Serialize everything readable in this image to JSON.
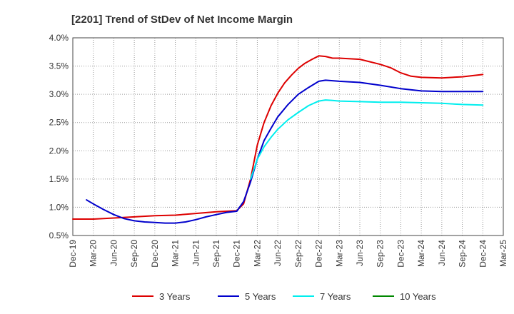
{
  "chart_data": {
    "type": "line",
    "title": "[2201]  Trend of StDev of Net Income Margin",
    "xlabel": "",
    "ylabel": "",
    "x": [
      "Dec-19",
      "Mar-20",
      "Jun-20",
      "Sep-20",
      "Dec-20",
      "Mar-21",
      "Jun-21",
      "Sep-21",
      "Dec-21",
      "Mar-22",
      "Jun-22",
      "Sep-22",
      "Dec-22",
      "Mar-23",
      "Jun-23",
      "Sep-23",
      "Dec-23",
      "Mar-24",
      "Jun-24",
      "Sep-24",
      "Dec-24",
      "Mar-25"
    ],
    "ylim": [
      0.5,
      4.0
    ],
    "y_ticks": [
      0.5,
      1.0,
      1.5,
      2.0,
      2.5,
      3.0,
      3.5,
      4.0
    ],
    "y_tick_labels": [
      "0.5%",
      "1.0%",
      "1.5%",
      "2.0%",
      "2.5%",
      "3.0%",
      "3.5%",
      "4.0%"
    ],
    "grid": true,
    "legend_position": "bottom",
    "series": [
      {
        "name": "3 Years",
        "color": "#dd0000",
        "points": [
          [
            0,
            0.79
          ],
          [
            1,
            0.79
          ],
          [
            2,
            0.81
          ],
          [
            3,
            0.83
          ],
          [
            4,
            0.85
          ],
          [
            5,
            0.86
          ],
          [
            6,
            0.89
          ],
          [
            7,
            0.92
          ],
          [
            8,
            0.94
          ],
          [
            8.33,
            1.06
          ],
          [
            8.67,
            1.5
          ],
          [
            9,
            2.1
          ],
          [
            9.33,
            2.5
          ],
          [
            9.67,
            2.8
          ],
          [
            10,
            3.02
          ],
          [
            10.33,
            3.2
          ],
          [
            10.67,
            3.34
          ],
          [
            11,
            3.46
          ],
          [
            11.33,
            3.55
          ],
          [
            11.67,
            3.62
          ],
          [
            12,
            3.68
          ],
          [
            12.33,
            3.67
          ],
          [
            12.67,
            3.64
          ],
          [
            13,
            3.64
          ],
          [
            14,
            3.62
          ],
          [
            15,
            3.53
          ],
          [
            15.5,
            3.47
          ],
          [
            16,
            3.38
          ],
          [
            16.5,
            3.32
          ],
          [
            17,
            3.3
          ],
          [
            18,
            3.29
          ],
          [
            19,
            3.31
          ],
          [
            20,
            3.35
          ]
        ]
      },
      {
        "name": "5 Years",
        "color": "#0000cc",
        "points": [
          [
            0.67,
            1.13
          ],
          [
            1,
            1.06
          ],
          [
            1.5,
            0.96
          ],
          [
            2,
            0.87
          ],
          [
            2.5,
            0.8
          ],
          [
            3,
            0.76
          ],
          [
            3.5,
            0.74
          ],
          [
            4,
            0.73
          ],
          [
            4.5,
            0.72
          ],
          [
            5,
            0.72
          ],
          [
            5.5,
            0.74
          ],
          [
            6,
            0.78
          ],
          [
            6.5,
            0.83
          ],
          [
            7,
            0.87
          ],
          [
            7.5,
            0.91
          ],
          [
            8,
            0.93
          ],
          [
            8.33,
            1.1
          ],
          [
            8.67,
            1.45
          ],
          [
            9,
            1.85
          ],
          [
            9.33,
            2.18
          ],
          [
            9.67,
            2.4
          ],
          [
            10,
            2.6
          ],
          [
            10.5,
            2.82
          ],
          [
            11,
            3.0
          ],
          [
            11.5,
            3.12
          ],
          [
            12,
            3.23
          ],
          [
            12.33,
            3.25
          ],
          [
            12.67,
            3.24
          ],
          [
            13,
            3.23
          ],
          [
            14,
            3.21
          ],
          [
            15,
            3.16
          ],
          [
            16,
            3.1
          ],
          [
            17,
            3.06
          ],
          [
            18,
            3.05
          ],
          [
            19,
            3.05
          ],
          [
            20,
            3.05
          ]
        ]
      },
      {
        "name": "7 Years",
        "color": "#00eeee",
        "points": [
          [
            8.67,
            1.5
          ],
          [
            9,
            1.85
          ],
          [
            9.33,
            2.07
          ],
          [
            9.67,
            2.24
          ],
          [
            10,
            2.38
          ],
          [
            10.5,
            2.55
          ],
          [
            11,
            2.68
          ],
          [
            11.5,
            2.8
          ],
          [
            12,
            2.88
          ],
          [
            12.33,
            2.9
          ],
          [
            12.67,
            2.89
          ],
          [
            13,
            2.88
          ],
          [
            14,
            2.87
          ],
          [
            15,
            2.86
          ],
          [
            16,
            2.86
          ],
          [
            17,
            2.85
          ],
          [
            18,
            2.84
          ],
          [
            19,
            2.82
          ],
          [
            20,
            2.81
          ]
        ]
      },
      {
        "name": "10 Years",
        "color": "#008800",
        "points": []
      }
    ]
  }
}
